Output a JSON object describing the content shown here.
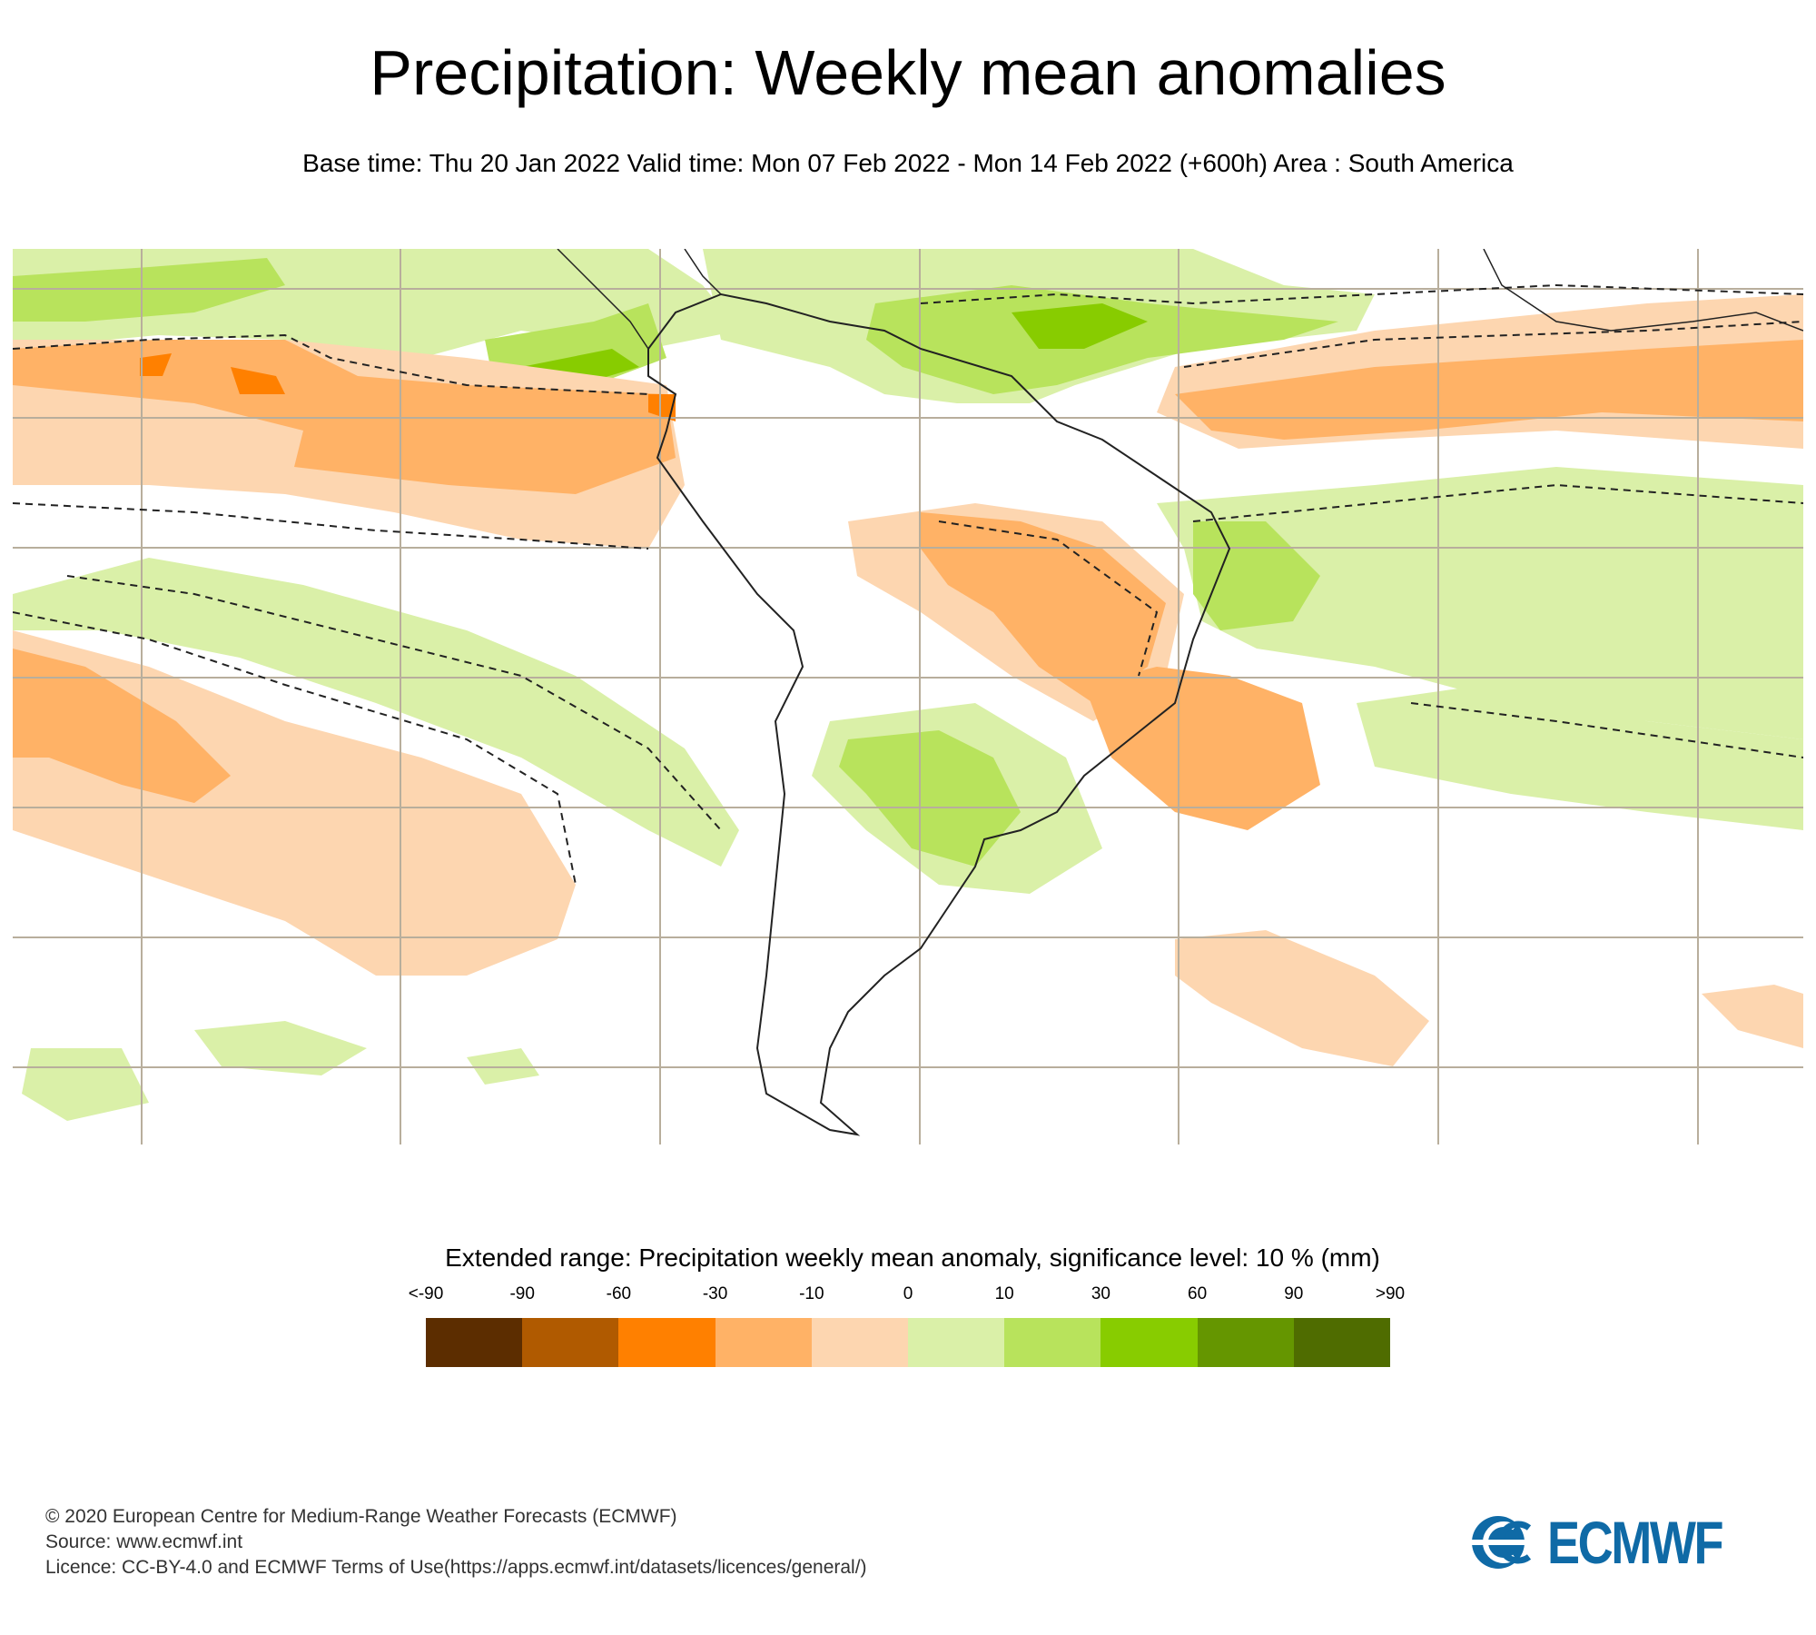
{
  "header": {
    "title": "Precipitation: Weekly mean anomalies",
    "subtitle": "Base time: Thu 20 Jan 2022 Valid time: Mon 07 Feb 2022 - Mon 14 Feb 2022 (+600h) Area : South America"
  },
  "map": {
    "area": "South America",
    "significance_contour": "dashed",
    "colors": {
      "lt_neg90": "#5c2d00",
      "neg90_neg60": "#b05a00",
      "neg60_neg30": "#ff8000",
      "neg30_neg10": "#ffb266",
      "neg10_0": "#fdd6b0",
      "0_10": "#daf0a8",
      "10_30": "#b8e35c",
      "30_60": "#88cc00",
      "60_90": "#659600",
      "gt_90": "#4f6c00",
      "grid": "#b8ae9c",
      "coast": "#222222"
    }
  },
  "legend": {
    "title": "Extended range: Precipitation weekly mean anomaly, significance level: 10 % (mm)",
    "labels": [
      "<-90",
      "-90",
      "-60",
      "-30",
      "-10",
      "0",
      "10",
      "30",
      "60",
      "90",
      ">90"
    ],
    "colors": [
      "#5c2d00",
      "#b05a00",
      "#ff8000",
      "#ffb266",
      "#fdd6b0",
      "#daf0a8",
      "#b8e35c",
      "#88cc00",
      "#659600",
      "#4f6c00"
    ]
  },
  "footer": {
    "line1": "© 2020 European Centre for Medium-Range Weather Forecasts (ECMWF)",
    "line2": "Source: www.ecmwf.int",
    "line3": "Licence: CC-BY-4.0 and ECMWF Terms of Use(https://apps.ecmwf.int/datasets/licences/general/)"
  },
  "logo": {
    "text": "ECMWF",
    "color": "#0f6aa6"
  }
}
